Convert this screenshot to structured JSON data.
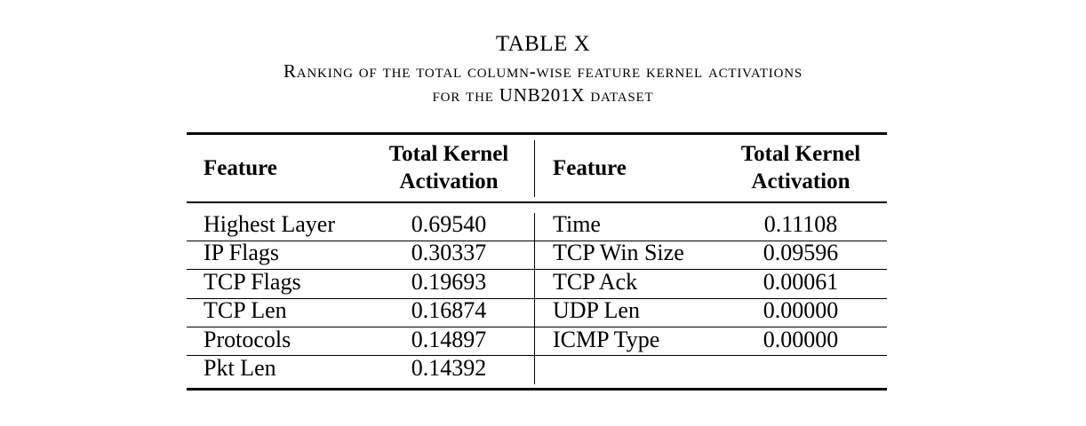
{
  "caption": {
    "table_number": "TABLE X",
    "title_line_1": "Ranking of the total column-wise feature kernel activations",
    "title_line_2": "for the UNB201X dataset"
  },
  "table": {
    "headers": {
      "feature_left": "Feature",
      "kernel_left_line_1": "Total Kernel",
      "kernel_left_line_2": "Activation",
      "feature_right": "Feature",
      "kernel_right_line_1": "Total Kernel",
      "kernel_right_line_2": "Activation"
    },
    "left": [
      {
        "feature": "Highest Layer",
        "value": "0.69540"
      },
      {
        "feature": "IP Flags",
        "value": "0.30337"
      },
      {
        "feature": "TCP Flags",
        "value": "0.19693"
      },
      {
        "feature": "TCP Len",
        "value": "0.16874"
      },
      {
        "feature": "Protocols",
        "value": "0.14897"
      },
      {
        "feature": "Pkt Len",
        "value": "0.14392"
      }
    ],
    "right": [
      {
        "feature": "Time",
        "value": "0.11108"
      },
      {
        "feature": "TCP Win Size",
        "value": "0.09596"
      },
      {
        "feature": "TCP Ack",
        "value": "0.00061"
      },
      {
        "feature": "UDP Len",
        "value": "0.00000"
      },
      {
        "feature": "ICMP Type",
        "value": "0.00000"
      }
    ]
  }
}
